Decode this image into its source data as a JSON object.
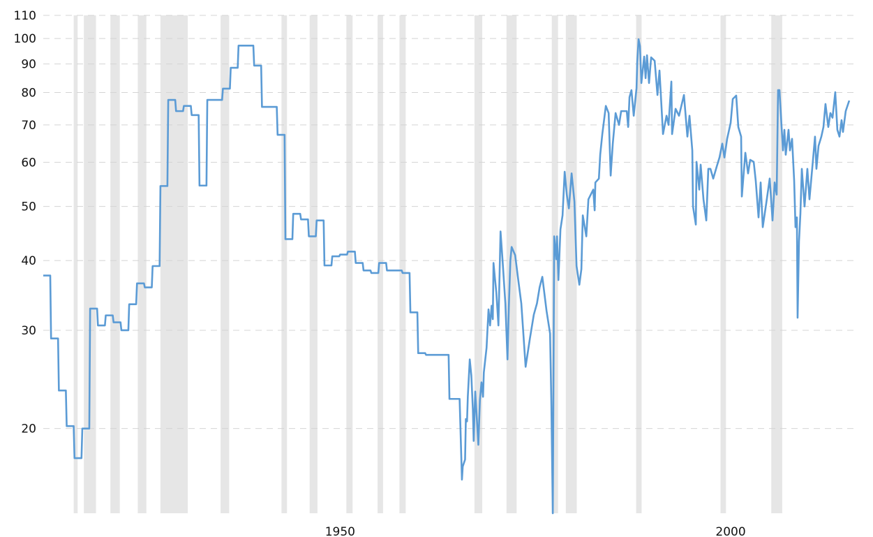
{
  "chart_data": {
    "type": "line",
    "title": "",
    "xlabel": "",
    "ylabel": "",
    "y_scale": "log",
    "ylim": [
      14.1,
      110
    ],
    "xlim": [
      1912,
      2015.9
    ],
    "yticks": [
      20,
      30,
      40,
      50,
      60,
      70,
      80,
      90,
      100,
      110
    ],
    "ytick_labels": [
      "20",
      "30",
      "40",
      "50",
      "60",
      "70",
      "80",
      "90",
      "100",
      "110"
    ],
    "xticks": [
      1950,
      2000
    ],
    "xtick_labels": [
      "1950",
      "2000"
    ],
    "grid": "horizontal dashed",
    "legend": "none",
    "line_color": "#5b9bd5",
    "band_color": "#e6e6e6",
    "shaded_bands": [
      [
        1915.9,
        1916.4
      ],
      [
        1917.2,
        1918.75
      ],
      [
        1920.6,
        1921.8
      ],
      [
        1924.1,
        1925.2
      ],
      [
        1927.0,
        1930.5
      ],
      [
        1934.7,
        1935.8
      ],
      [
        1942.5,
        1943.2
      ],
      [
        1946.1,
        1947.1
      ],
      [
        1950.8,
        1951.6
      ],
      [
        1954.8,
        1955.5
      ],
      [
        1957.6,
        1958.4
      ],
      [
        1967.2,
        1968.2
      ],
      [
        1971.3,
        1972.6
      ],
      [
        1977.1,
        1977.9
      ],
      [
        1978.9,
        1980.3
      ],
      [
        1987.9,
        1988.6
      ],
      [
        1998.7,
        1999.4
      ],
      [
        2005.2,
        2006.6
      ]
    ],
    "step_until": 1965,
    "series": [
      {
        "points": [
          [
            1912,
            37.6
          ],
          [
            1913,
            29.0
          ],
          [
            1914,
            23.4
          ],
          [
            1915,
            20.2
          ],
          [
            1916,
            17.7
          ],
          [
            1917,
            20.0
          ],
          [
            1918,
            32.8
          ],
          [
            1919,
            30.6
          ],
          [
            1920,
            31.9
          ],
          [
            1921,
            31.0
          ],
          [
            1922,
            30.0
          ],
          [
            1923,
            33.4
          ],
          [
            1924,
            36.4
          ],
          [
            1925,
            35.8
          ],
          [
            1926,
            39.1
          ],
          [
            1927,
            54.4
          ],
          [
            1928,
            77.6
          ],
          [
            1929,
            74.1
          ],
          [
            1930,
            75.7
          ],
          [
            1931,
            72.9
          ],
          [
            1932,
            54.5
          ],
          [
            1933,
            77.6
          ],
          [
            1934,
            77.6
          ],
          [
            1935,
            81.3
          ],
          [
            1936,
            88.6
          ],
          [
            1937,
            97.1
          ],
          [
            1938,
            97.1
          ],
          [
            1939,
            89.4
          ],
          [
            1940,
            75.4
          ],
          [
            1941,
            75.4
          ],
          [
            1942,
            67.2
          ],
          [
            1943,
            43.7
          ],
          [
            1944,
            48.5
          ],
          [
            1945,
            47.4
          ],
          [
            1946,
            44.2
          ],
          [
            1947,
            47.2
          ],
          [
            1948,
            39.2
          ],
          [
            1949,
            40.7
          ],
          [
            1950,
            41.0
          ],
          [
            1951,
            41.5
          ],
          [
            1952,
            39.6
          ],
          [
            1953,
            38.4
          ],
          [
            1954,
            38.0
          ],
          [
            1955,
            39.6
          ],
          [
            1956,
            38.4
          ],
          [
            1957,
            38.4
          ],
          [
            1958,
            38.0
          ],
          [
            1959,
            32.3
          ],
          [
            1960,
            27.3
          ],
          [
            1961,
            27.1
          ],
          [
            1962,
            27.1
          ],
          [
            1963,
            27.1
          ],
          [
            1964,
            22.6
          ],
          [
            1965.3,
            22.6
          ],
          [
            1965.6,
            16.2
          ],
          [
            1965.7,
            17.1
          ],
          [
            1966.0,
            17.6
          ],
          [
            1966.1,
            20.8
          ],
          [
            1966.25,
            20.6
          ],
          [
            1966.35,
            22.8
          ],
          [
            1966.6,
            26.6
          ],
          [
            1966.8,
            24.9
          ],
          [
            1967.0,
            21.6
          ],
          [
            1967.1,
            19.0
          ],
          [
            1967.3,
            23.3
          ],
          [
            1967.5,
            20.9
          ],
          [
            1967.7,
            18.7
          ],
          [
            1967.9,
            22.5
          ],
          [
            1968.1,
            24.2
          ],
          [
            1968.3,
            22.8
          ],
          [
            1968.4,
            25.2
          ],
          [
            1968.75,
            27.9
          ],
          [
            1969.0,
            32.7
          ],
          [
            1969.2,
            30.6
          ],
          [
            1969.4,
            33.2
          ],
          [
            1969.55,
            31.4
          ],
          [
            1969.64,
            39.6
          ],
          [
            1969.82,
            37.2
          ],
          [
            1970.0,
            35.1
          ],
          [
            1970.27,
            30.6
          ],
          [
            1970.54,
            45.1
          ],
          [
            1970.8,
            40.0
          ],
          [
            1971.16,
            33.5
          ],
          [
            1971.43,
            26.6
          ],
          [
            1971.6,
            33.0
          ],
          [
            1971.8,
            40.0
          ],
          [
            1971.96,
            42.3
          ],
          [
            1972.41,
            40.9
          ],
          [
            1972.8,
            37.0
          ],
          [
            1973.2,
            33.5
          ],
          [
            1973.75,
            25.8
          ],
          [
            1974.3,
            29.0
          ],
          [
            1974.8,
            32.0
          ],
          [
            1975.2,
            33.5
          ],
          [
            1975.54,
            35.8
          ],
          [
            1975.89,
            37.4
          ],
          [
            1976.43,
            32.5
          ],
          [
            1976.88,
            29.6
          ],
          [
            1977.05,
            22.0
          ],
          [
            1977.23,
            14.1
          ],
          [
            1977.41,
            44.2
          ],
          [
            1977.68,
            40.2
          ],
          [
            1977.77,
            44.2
          ],
          [
            1977.95,
            36.9
          ],
          [
            1978.21,
            45.5
          ],
          [
            1978.48,
            48.2
          ],
          [
            1978.75,
            57.7
          ],
          [
            1979.02,
            52.5
          ],
          [
            1979.29,
            49.6
          ],
          [
            1979.64,
            57.3
          ],
          [
            1980.0,
            51.0
          ],
          [
            1980.27,
            39.1
          ],
          [
            1980.63,
            36.2
          ],
          [
            1980.89,
            38.6
          ],
          [
            1981.07,
            48.2
          ],
          [
            1981.52,
            44.2
          ],
          [
            1981.79,
            51.5
          ],
          [
            1982.41,
            53.6
          ],
          [
            1982.59,
            49.2
          ],
          [
            1982.68,
            55.2
          ],
          [
            1983.13,
            56.1
          ],
          [
            1983.3,
            61.9
          ],
          [
            1983.57,
            67.4
          ],
          [
            1984.02,
            75.7
          ],
          [
            1984.38,
            73.5
          ],
          [
            1984.64,
            56.8
          ],
          [
            1984.91,
            64.8
          ],
          [
            1985.27,
            73.5
          ],
          [
            1985.71,
            70.0
          ],
          [
            1985.98,
            74.1
          ],
          [
            1986.7,
            74.1
          ],
          [
            1986.88,
            69.4
          ],
          [
            1987.05,
            78.5
          ],
          [
            1987.3,
            80.8
          ],
          [
            1987.59,
            72.7
          ],
          [
            1987.95,
            81.5
          ],
          [
            1988.04,
            90.7
          ],
          [
            1988.21,
            99.7
          ],
          [
            1988.39,
            96.9
          ],
          [
            1988.57,
            83.2
          ],
          [
            1988.93,
            92.8
          ],
          [
            1989.11,
            84.9
          ],
          [
            1989.29,
            93.3
          ],
          [
            1989.55,
            83.2
          ],
          [
            1989.82,
            92.5
          ],
          [
            1990.27,
            91.2
          ],
          [
            1990.63,
            79.2
          ],
          [
            1990.89,
            87.6
          ],
          [
            1991.34,
            67.4
          ],
          [
            1991.79,
            72.7
          ],
          [
            1992.05,
            70.0
          ],
          [
            1992.41,
            83.7
          ],
          [
            1992.5,
            67.4
          ],
          [
            1992.95,
            74.8
          ],
          [
            1993.39,
            72.7
          ],
          [
            1994.02,
            79.2
          ],
          [
            1994.46,
            66.7
          ],
          [
            1994.73,
            72.7
          ],
          [
            1995.09,
            63.0
          ],
          [
            1995.18,
            50.0
          ],
          [
            1995.54,
            46.4
          ],
          [
            1995.63,
            60.1
          ],
          [
            1995.98,
            53.6
          ],
          [
            1996.16,
            59.4
          ],
          [
            1996.52,
            51.5
          ],
          [
            1996.88,
            47.2
          ],
          [
            1997.14,
            58.4
          ],
          [
            1997.41,
            58.4
          ],
          [
            1997.77,
            56.1
          ],
          [
            1998.21,
            58.9
          ],
          [
            1998.57,
            61.2
          ],
          [
            1998.93,
            64.8
          ],
          [
            1999.2,
            61.2
          ],
          [
            1999.55,
            66.1
          ],
          [
            2000.0,
            70.6
          ],
          [
            2000.27,
            77.9
          ],
          [
            2000.71,
            79.0
          ],
          [
            2000.98,
            69.4
          ],
          [
            2001.34,
            66.7
          ],
          [
            2001.43,
            52.1
          ],
          [
            2001.88,
            62.4
          ],
          [
            2002.23,
            57.3
          ],
          [
            2002.5,
            60.6
          ],
          [
            2002.95,
            60.1
          ],
          [
            2003.21,
            55.6
          ],
          [
            2003.57,
            47.8
          ],
          [
            2003.84,
            55.2
          ],
          [
            2004.11,
            45.9
          ],
          [
            2004.55,
            50.6
          ],
          [
            2005.0,
            56.1
          ],
          [
            2005.36,
            47.2
          ],
          [
            2005.63,
            55.2
          ],
          [
            2005.89,
            52.5
          ],
          [
            2006.07,
            80.8
          ],
          [
            2006.25,
            80.8
          ],
          [
            2006.52,
            69.4
          ],
          [
            2006.7,
            63.0
          ],
          [
            2006.88,
            68.6
          ],
          [
            2007.05,
            61.9
          ],
          [
            2007.41,
            68.6
          ],
          [
            2007.59,
            63.0
          ],
          [
            2007.86,
            66.1
          ],
          [
            2008.13,
            55.6
          ],
          [
            2008.3,
            45.9
          ],
          [
            2008.48,
            47.8
          ],
          [
            2008.57,
            31.6
          ],
          [
            2008.75,
            43.3
          ],
          [
            2008.93,
            48.6
          ],
          [
            2009.11,
            58.4
          ],
          [
            2009.46,
            50.0
          ],
          [
            2009.82,
            58.4
          ],
          [
            2010.09,
            51.5
          ],
          [
            2010.36,
            56.8
          ],
          [
            2010.54,
            60.6
          ],
          [
            2010.8,
            66.7
          ],
          [
            2010.98,
            58.4
          ],
          [
            2011.25,
            64.2
          ],
          [
            2011.61,
            66.7
          ],
          [
            2011.88,
            69.4
          ],
          [
            2012.14,
            76.3
          ],
          [
            2012.5,
            69.4
          ],
          [
            2012.77,
            73.5
          ],
          [
            2013.04,
            72.1
          ],
          [
            2013.39,
            80.1
          ],
          [
            2013.66,
            68.6
          ],
          [
            2013.93,
            66.7
          ],
          [
            2014.2,
            71.4
          ],
          [
            2014.38,
            68.0
          ],
          [
            2014.73,
            74.1
          ],
          [
            2015.18,
            77.4
          ]
        ]
      }
    ]
  }
}
